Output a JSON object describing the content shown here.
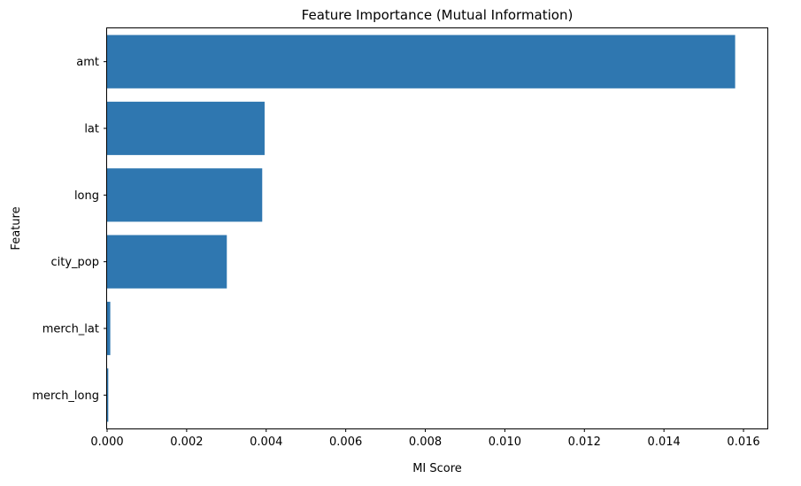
{
  "chart_data": {
    "type": "bar",
    "orientation": "horizontal",
    "title": "Feature Importance (Mutual Information)",
    "xlabel": "MI Score",
    "ylabel": "Feature",
    "categories": [
      "amt",
      "lat",
      "long",
      "city_pop",
      "merch_lat",
      "merch_long"
    ],
    "values": [
      0.01579,
      0.00396,
      0.0039,
      0.00301,
      8e-05,
      3e-05
    ],
    "xlim": [
      0,
      0.0166
    ],
    "xticks": [
      "0.000",
      "0.002",
      "0.004",
      "0.006",
      "0.008",
      "0.010",
      "0.012",
      "0.014",
      "0.016"
    ],
    "xtick_values": [
      0,
      0.002,
      0.004,
      0.006,
      0.008,
      0.01,
      0.012,
      0.014,
      0.016
    ],
    "grid": false,
    "bar_color": "#2f77b0"
  }
}
